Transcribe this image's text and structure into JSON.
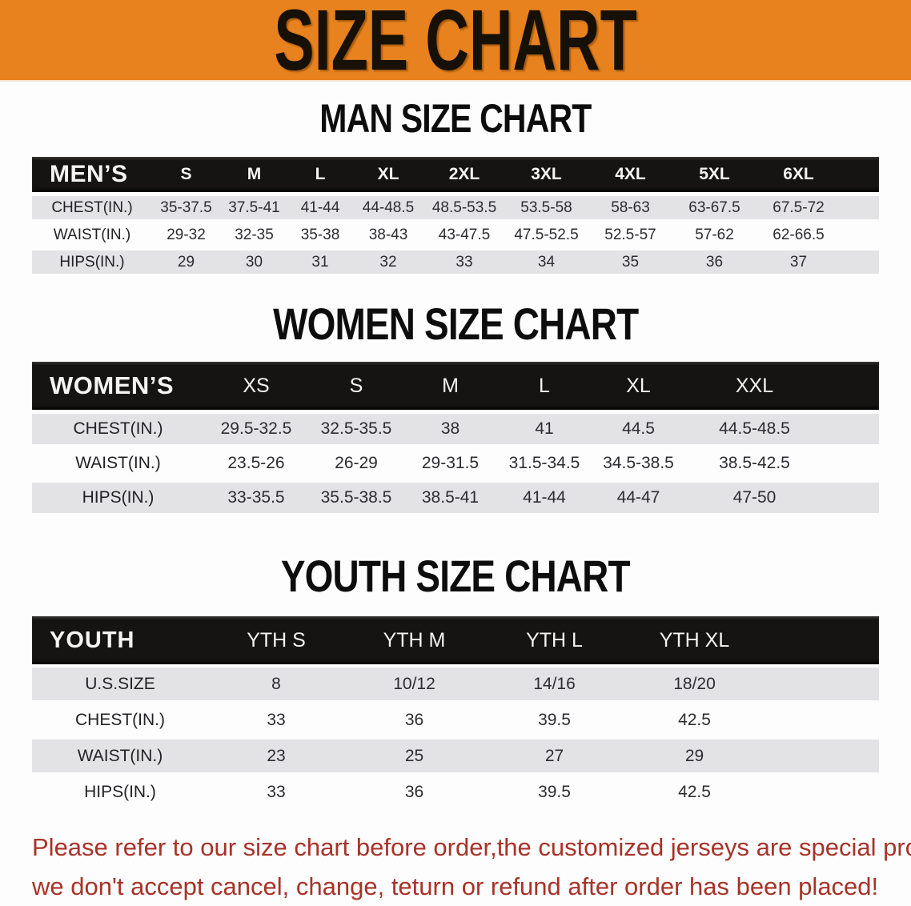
{
  "banner": {
    "title": "SIZE CHART"
  },
  "men": {
    "heading": "MAN SIZE CHART",
    "header": [
      "MEN’S",
      "S",
      "M",
      "L",
      "XL",
      "2XL",
      "3XL",
      "4XL",
      "5XL",
      "6XL"
    ],
    "rows": [
      {
        "label": "CHEST(IN.)",
        "values": [
          "35-37.5",
          "37.5-41",
          "41-44",
          "44-48.5",
          "48.5-53.5",
          "53.5-58",
          "58-63",
          "63-67.5",
          "67.5-72"
        ]
      },
      {
        "label": "WAIST(IN.)",
        "values": [
          "29-32",
          "32-35",
          "35-38",
          "38-43",
          "43-47.5",
          "47.5-52.5",
          "52.5-57",
          "57-62",
          "62-66.5"
        ]
      },
      {
        "label": "HIPS(IN.)",
        "values": [
          "29",
          "30",
          "31",
          "32",
          "33",
          "34",
          "35",
          "36",
          "37"
        ]
      }
    ]
  },
  "women": {
    "heading": "WOMEN SIZE CHART",
    "header": [
      "WOMEN’S",
      "XS",
      "S",
      "M",
      "L",
      "XL",
      "XXL"
    ],
    "rows": [
      {
        "label": "CHEST(IN.)",
        "values": [
          "29.5-32.5",
          "32.5-35.5",
          "38",
          "41",
          "44.5",
          "44.5-48.5"
        ]
      },
      {
        "label": "WAIST(IN.)",
        "values": [
          "23.5-26",
          "26-29",
          "29-31.5",
          "31.5-34.5",
          "34.5-38.5",
          "38.5-42.5"
        ]
      },
      {
        "label": "HIPS(IN.)",
        "values": [
          "33-35.5",
          "35.5-38.5",
          "38.5-41",
          "41-44",
          "44-47",
          "47-50"
        ]
      }
    ]
  },
  "youth": {
    "heading": "YOUTH SIZE CHART",
    "header": [
      "YOUTH",
      "YTH S",
      "YTH M",
      "YTH L",
      "YTH XL"
    ],
    "rows": [
      {
        "label": "U.S.SIZE",
        "values": [
          "8",
          "10/12",
          "14/16",
          "18/20"
        ]
      },
      {
        "label": "CHEST(IN.)",
        "values": [
          "33",
          "36",
          "39.5",
          "42.5"
        ]
      },
      {
        "label": "WAIST(IN.)",
        "values": [
          "23",
          "25",
          "27",
          "29"
        ]
      },
      {
        "label": "HIPS(IN.)",
        "values": [
          "33",
          "36",
          "39.5",
          "42.5"
        ]
      }
    ]
  },
  "note": {
    "line1": "Please refer to our size chart before order,the customized jerseys are special products,",
    "line2": "we don't accept cancel, change, teturn or refund after order has been placed!"
  },
  "colors": {
    "banner_bg": "#E8821E",
    "table_header_bg": "#151413",
    "row_stripe": "#E3E3E5",
    "note_text": "#A83228"
  }
}
